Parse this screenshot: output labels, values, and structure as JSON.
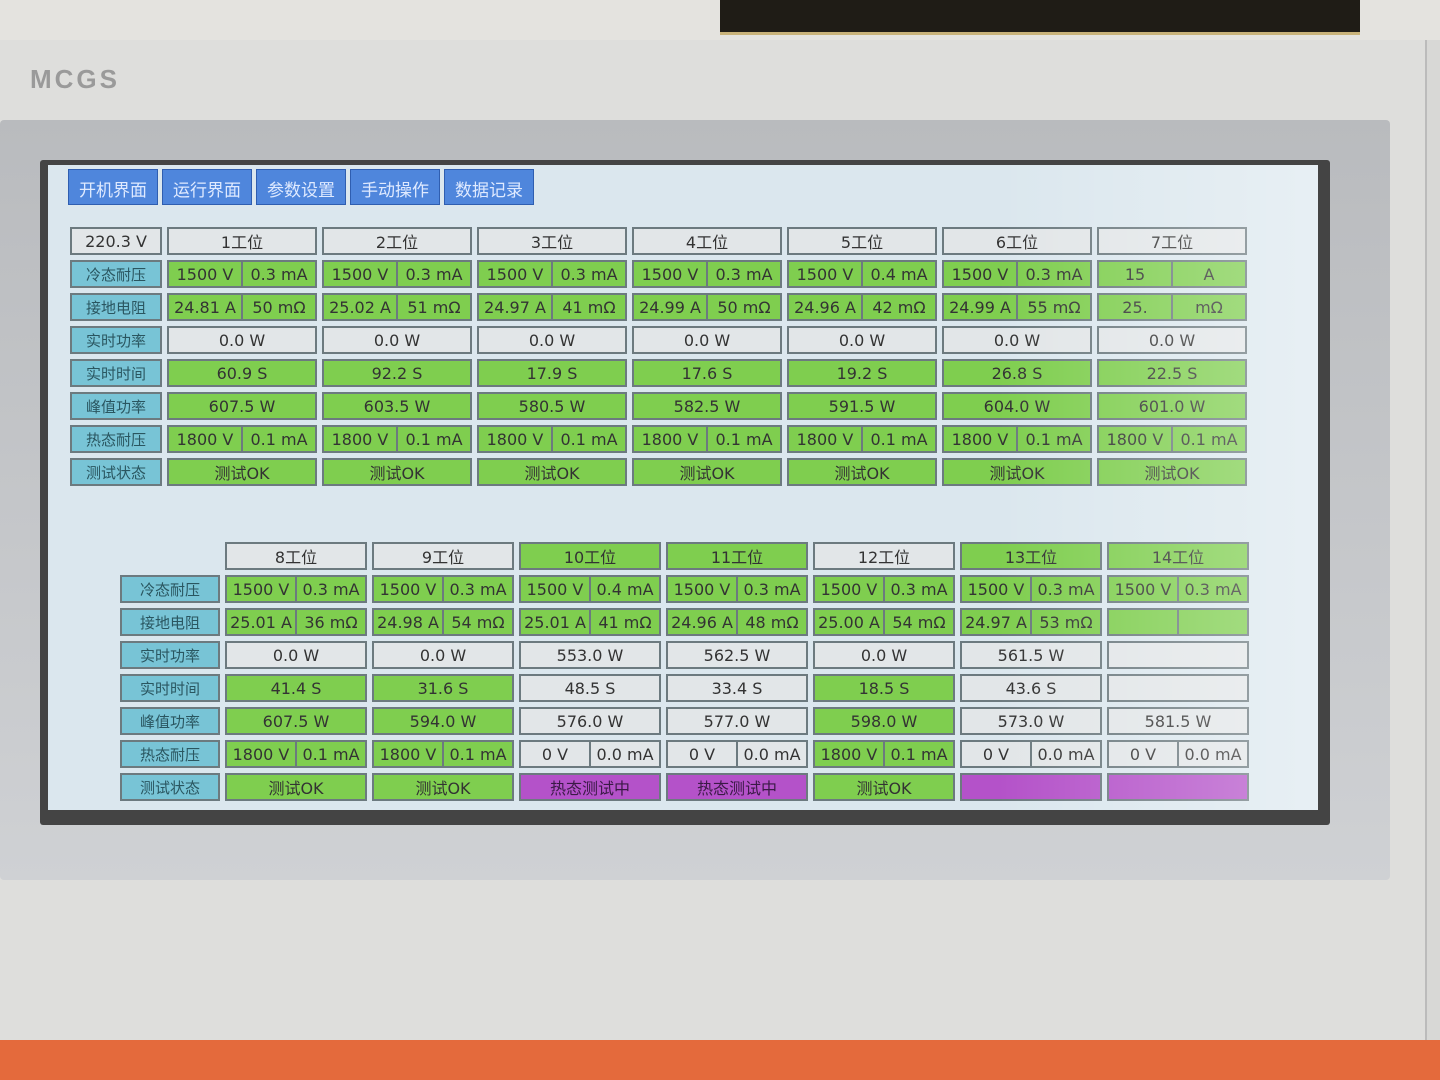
{
  "brand": "MCGS",
  "tabs": [
    "开机界面",
    "运行界面",
    "参数设置",
    "手动操作",
    "数据记录"
  ],
  "supply_voltage": "220.3 V",
  "row_labels": [
    "冷态耐压",
    "接地电阻",
    "实时功率",
    "实时时间",
    "峰值功率",
    "热态耐压",
    "测试状态"
  ],
  "colors": {
    "green": "#7fce4f",
    "gray": "#e2e6e8",
    "purple": "#b452c9",
    "label": "#78c4d6",
    "tab": "#4f86dc"
  },
  "top_stations": [
    {
      "name": "1工位",
      "cold": [
        "1500 V",
        "0.3 mA"
      ],
      "ground": [
        "24.81 A",
        "50 mΩ"
      ],
      "power": "0.0 W",
      "time": "60.9 S",
      "peak": "607.5 W",
      "hot": [
        "1800 V",
        "0.1 mA"
      ],
      "status": "测试OK",
      "colors": [
        "gray",
        "green",
        "green",
        "gray",
        "green",
        "green",
        "green",
        "green"
      ]
    },
    {
      "name": "2工位",
      "cold": [
        "1500 V",
        "0.3 mA"
      ],
      "ground": [
        "25.02 A",
        "51 mΩ"
      ],
      "power": "0.0 W",
      "time": "92.2 S",
      "peak": "603.5 W",
      "hot": [
        "1800 V",
        "0.1 mA"
      ],
      "status": "测试OK",
      "colors": [
        "gray",
        "green",
        "green",
        "gray",
        "green",
        "green",
        "green",
        "green"
      ]
    },
    {
      "name": "3工位",
      "cold": [
        "1500 V",
        "0.3 mA"
      ],
      "ground": [
        "24.97 A",
        "41 mΩ"
      ],
      "power": "0.0 W",
      "time": "17.9 S",
      "peak": "580.5 W",
      "hot": [
        "1800 V",
        "0.1 mA"
      ],
      "status": "测试OK",
      "colors": [
        "gray",
        "green",
        "green",
        "gray",
        "green",
        "green",
        "green",
        "green"
      ]
    },
    {
      "name": "4工位",
      "cold": [
        "1500 V",
        "0.3 mA"
      ],
      "ground": [
        "24.99 A",
        "50 mΩ"
      ],
      "power": "0.0 W",
      "time": "17.6 S",
      "peak": "582.5 W",
      "hot": [
        "1800 V",
        "0.1 mA"
      ],
      "status": "测试OK",
      "colors": [
        "gray",
        "green",
        "green",
        "gray",
        "green",
        "green",
        "green",
        "green"
      ]
    },
    {
      "name": "5工位",
      "cold": [
        "1500 V",
        "0.4 mA"
      ],
      "ground": [
        "24.96 A",
        "42 mΩ"
      ],
      "power": "0.0 W",
      "time": "19.2 S",
      "peak": "591.5 W",
      "hot": [
        "1800 V",
        "0.1 mA"
      ],
      "status": "测试OK",
      "colors": [
        "gray",
        "green",
        "green",
        "gray",
        "green",
        "green",
        "green",
        "green"
      ]
    },
    {
      "name": "6工位",
      "cold": [
        "1500 V",
        "0.3 mA"
      ],
      "ground": [
        "24.99 A",
        "55 mΩ"
      ],
      "power": "0.0 W",
      "time": "26.8 S",
      "peak": "604.0 W",
      "hot": [
        "1800 V",
        "0.1 mA"
      ],
      "status": "测试OK",
      "colors": [
        "gray",
        "green",
        "green",
        "gray",
        "green",
        "green",
        "green",
        "green"
      ]
    },
    {
      "name": "7工位",
      "cold": [
        "15",
        "A"
      ],
      "ground": [
        "25.",
        "mΩ"
      ],
      "power": "0.0 W",
      "time": "22.5 S",
      "peak": "601.0 W",
      "hot": [
        "1800 V",
        "0.1 mA"
      ],
      "status": "测试OK",
      "colors": [
        "gray",
        "green",
        "green",
        "gray",
        "green",
        "green",
        "green",
        "green"
      ]
    }
  ],
  "bottom_stations": [
    {
      "name": "8工位",
      "cold": [
        "1500 V",
        "0.3 mA"
      ],
      "ground": [
        "25.01 A",
        "36 mΩ"
      ],
      "power": "0.0 W",
      "time": "41.4 S",
      "peak": "607.5 W",
      "hot": [
        "1800 V",
        "0.1 mA"
      ],
      "status": "测试OK",
      "colors": [
        "gray",
        "green",
        "green",
        "gray",
        "green",
        "green",
        "green",
        "green"
      ]
    },
    {
      "name": "9工位",
      "cold": [
        "1500 V",
        "0.3 mA"
      ],
      "ground": [
        "24.98 A",
        "54 mΩ"
      ],
      "power": "0.0 W",
      "time": "31.6 S",
      "peak": "594.0 W",
      "hot": [
        "1800 V",
        "0.1 mA"
      ],
      "status": "测试OK",
      "colors": [
        "gray",
        "green",
        "green",
        "gray",
        "green",
        "green",
        "green",
        "green"
      ]
    },
    {
      "name": "10工位",
      "cold": [
        "1500 V",
        "0.4 mA"
      ],
      "ground": [
        "25.01 A",
        "41 mΩ"
      ],
      "power": "553.0 W",
      "time": "48.5 S",
      "peak": "576.0 W",
      "hot": [
        "0 V",
        "0.0 mA"
      ],
      "status": "热态测试中",
      "colors": [
        "green",
        "green",
        "green",
        "gray",
        "gray",
        "gray",
        "gray",
        "purple"
      ]
    },
    {
      "name": "11工位",
      "cold": [
        "1500 V",
        "0.3 mA"
      ],
      "ground": [
        "24.96 A",
        "48 mΩ"
      ],
      "power": "562.5 W",
      "time": "33.4 S",
      "peak": "577.0 W",
      "hot": [
        "0 V",
        "0.0 mA"
      ],
      "status": "热态测试中",
      "colors": [
        "green",
        "green",
        "green",
        "gray",
        "gray",
        "gray",
        "gray",
        "purple"
      ]
    },
    {
      "name": "12工位",
      "cold": [
        "1500 V",
        "0.3 mA"
      ],
      "ground": [
        "25.00 A",
        "54 mΩ"
      ],
      "power": "0.0 W",
      "time": "18.5 S",
      "peak": "598.0 W",
      "hot": [
        "1800 V",
        "0.1 mA"
      ],
      "status": "测试OK",
      "colors": [
        "gray",
        "green",
        "green",
        "gray",
        "green",
        "green",
        "green",
        "green"
      ]
    },
    {
      "name": "13工位",
      "cold": [
        "1500 V",
        "0.3 mA"
      ],
      "ground": [
        "24.97 A",
        "53 mΩ"
      ],
      "power": "561.5 W",
      "time": "43.6 S",
      "peak": "573.0 W",
      "hot": [
        "0 V",
        "0.0 mA"
      ],
      "status": "",
      "colors": [
        "green",
        "green",
        "green",
        "gray",
        "gray",
        "gray",
        "gray",
        "purple"
      ]
    },
    {
      "name": "14工位",
      "cold": [
        "1500 V",
        "0.3 mA"
      ],
      "ground": [
        "",
        ""
      ],
      "power": "",
      "time": "",
      "peak": "581.5 W",
      "hot": [
        "0 V",
        "0.0 mA"
      ],
      "status": "",
      "colors": [
        "green",
        "green",
        "green",
        "gray",
        "gray",
        "gray",
        "gray",
        "purple"
      ]
    }
  ]
}
